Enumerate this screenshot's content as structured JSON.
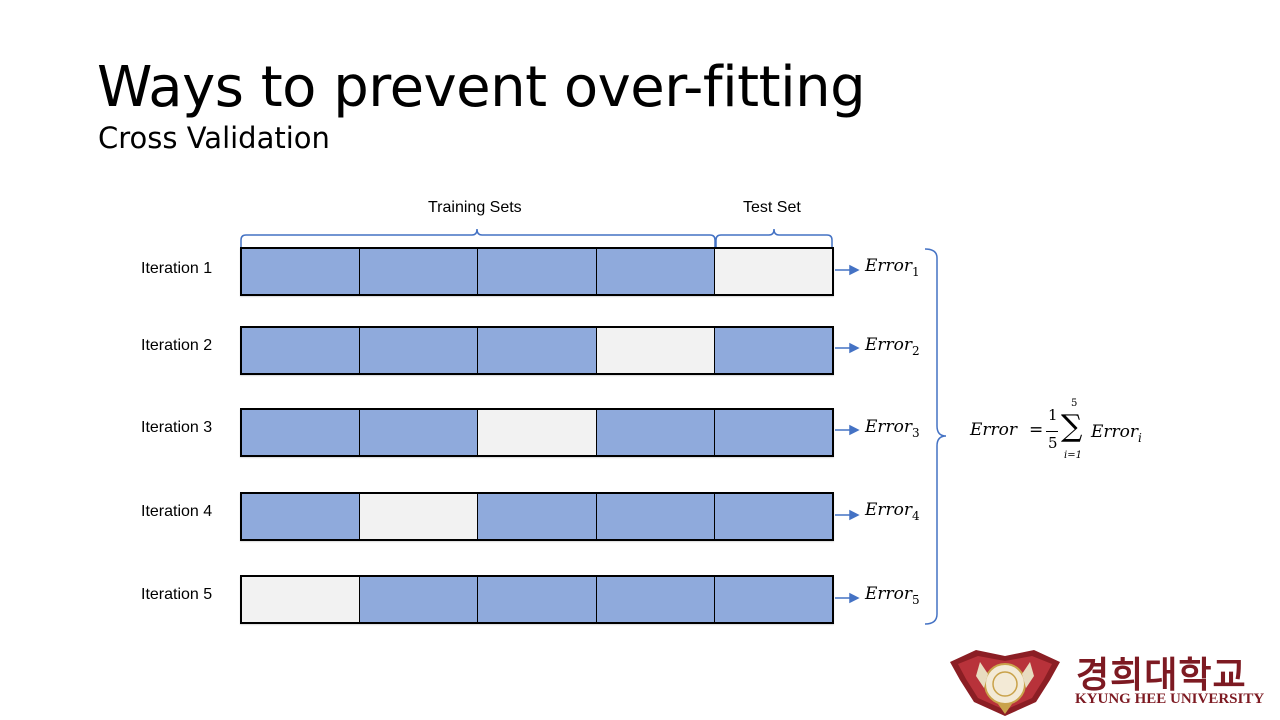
{
  "slide": {
    "title": "Ways to prevent over-fitting",
    "subtitle": "Cross Validation"
  },
  "diagram": {
    "training_header": "Training Sets",
    "test_header": "Test Set",
    "iterations": [
      {
        "label": "Iteration 1",
        "test_fold": 5,
        "error": "Error",
        "error_sub": "1"
      },
      {
        "label": "Iteration 2",
        "test_fold": 4,
        "error": "Error",
        "error_sub": "2"
      },
      {
        "label": "Iteration 3",
        "test_fold": 3,
        "error": "Error",
        "error_sub": "3"
      },
      {
        "label": "Iteration 4",
        "test_fold": 2,
        "error": "Error",
        "error_sub": "4"
      },
      {
        "label": "Iteration 5",
        "test_fold": 1,
        "error": "Error",
        "error_sub": "5"
      }
    ],
    "formula": {
      "lhs": "Error",
      "equals": "=",
      "numerator": "1",
      "denominator": "5",
      "sum_symbol": "∑",
      "upper_limit": "5",
      "lower_limit": "i=1",
      "rhs": "Error",
      "rhs_sub": "i"
    },
    "colors": {
      "train": "#8faadc",
      "test": "#f2f2f2",
      "bracket": "#4472c4"
    }
  },
  "logo": {
    "korean": "경희대학교",
    "english": "KYUNG HEE UNIVERSITY",
    "color": "#7d1a22"
  }
}
